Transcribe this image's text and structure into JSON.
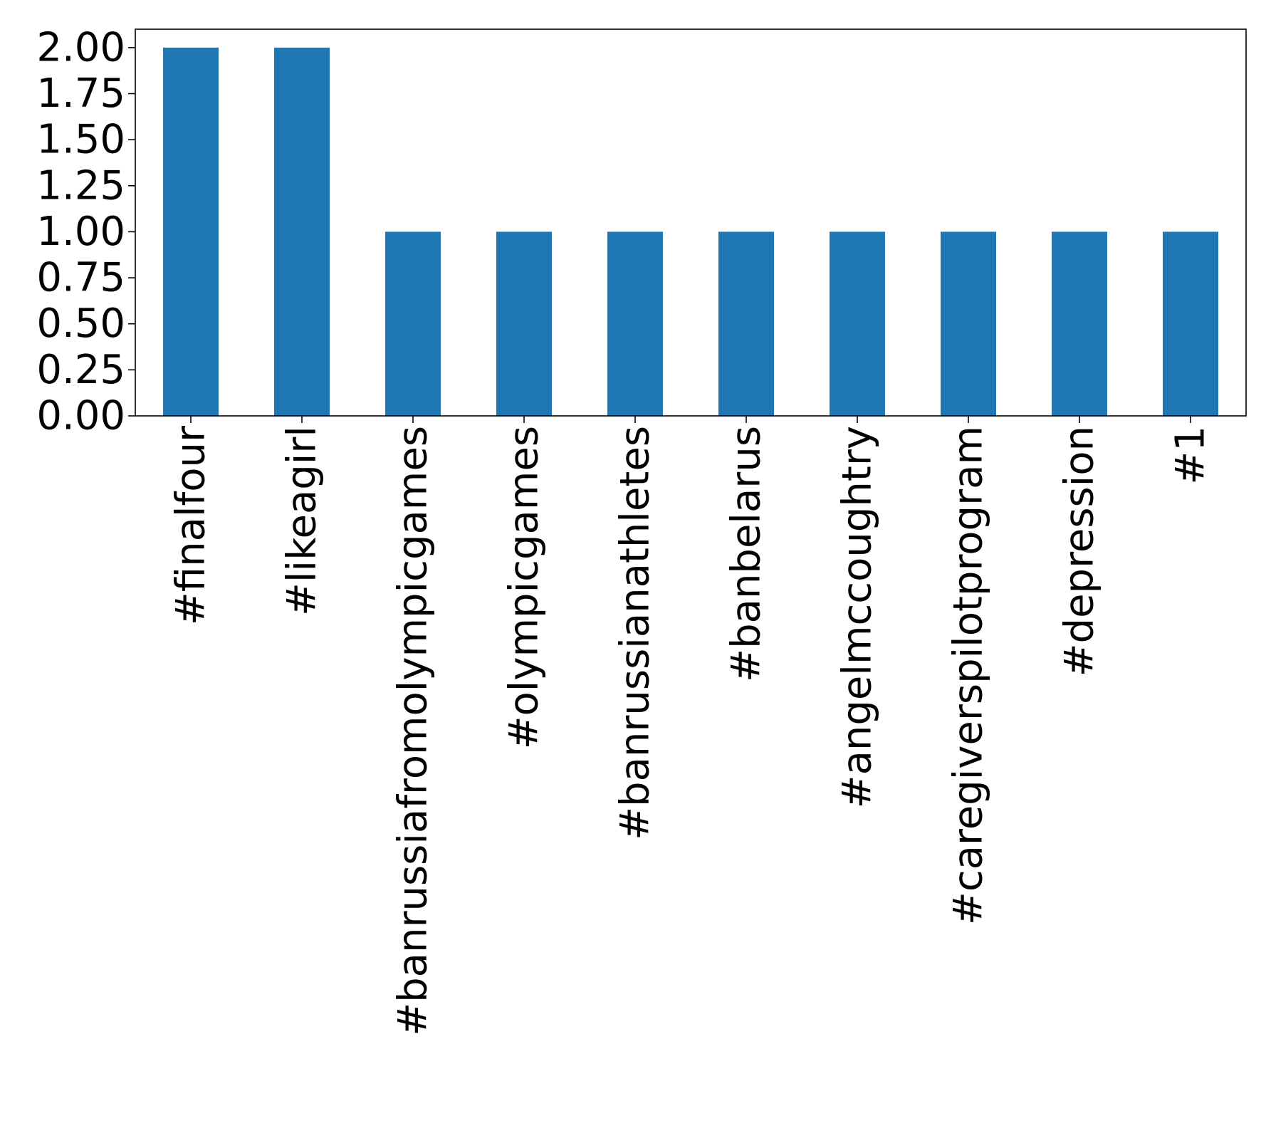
{
  "chart_data": {
    "type": "bar",
    "categories": [
      "#finalfour",
      "#likeagirl",
      "#banrussiafromolympicgames",
      "#olympicgames",
      "#banrussianathletes",
      "#banbelarus",
      "#angelmccoughtry",
      "#caregiverspilotprogram",
      "#depression",
      "#1"
    ],
    "values": [
      2,
      2,
      1,
      1,
      1,
      1,
      1,
      1,
      1,
      1
    ],
    "yticks": [
      "0.00",
      "0.25",
      "0.50",
      "0.75",
      "1.00",
      "1.25",
      "1.50",
      "1.75",
      "2.00"
    ],
    "ylim": [
      0,
      2.1
    ],
    "grid": false,
    "bar_color": "#1f77b4",
    "title": "",
    "xlabel": "",
    "ylabel": ""
  }
}
